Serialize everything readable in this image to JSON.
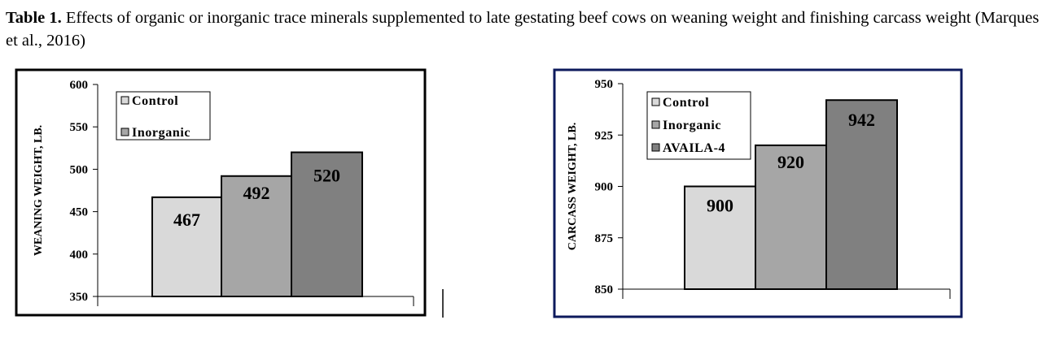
{
  "caption": {
    "label": "Table 1.",
    "text": " Effects of organic or inorganic trace minerals supplemented to late gestating beef cows on weaning weight and finishing carcass weight (Marques et al., 2016)"
  },
  "chart_data": [
    {
      "type": "bar",
      "ylabel": "WEANING WEIGHT, LB.",
      "ylim": [
        350,
        600
      ],
      "yticks": [
        350,
        400,
        450,
        500,
        550,
        600
      ],
      "categories": [
        "Control",
        "Inorganic",
        ""
      ],
      "values": [
        467,
        492,
        520
      ],
      "data_labels": [
        "467",
        "492",
        "520"
      ],
      "legend": [
        "Control",
        "Inorganic"
      ],
      "legend_placement": "top-left",
      "colors": [
        "#d9d9d9",
        "#a6a6a6",
        "#808080"
      ],
      "frame_color": "#000000",
      "grid": false
    },
    {
      "type": "bar",
      "ylabel": "CARCASS WEIGHT, LB.",
      "ylim": [
        850,
        950
      ],
      "yticks": [
        850,
        875,
        900,
        925,
        950
      ],
      "categories": [
        "Control",
        "Inorganic",
        "AVAILA-4"
      ],
      "values": [
        900,
        920,
        942
      ],
      "data_labels": [
        "900",
        "920",
        "942"
      ],
      "legend": [
        "Control",
        "Inorganic",
        "AVAILA-4"
      ],
      "legend_placement": "top-left",
      "colors": [
        "#d9d9d9",
        "#a6a6a6",
        "#808080"
      ],
      "frame_color": "#0d1a5c",
      "grid": false
    }
  ]
}
